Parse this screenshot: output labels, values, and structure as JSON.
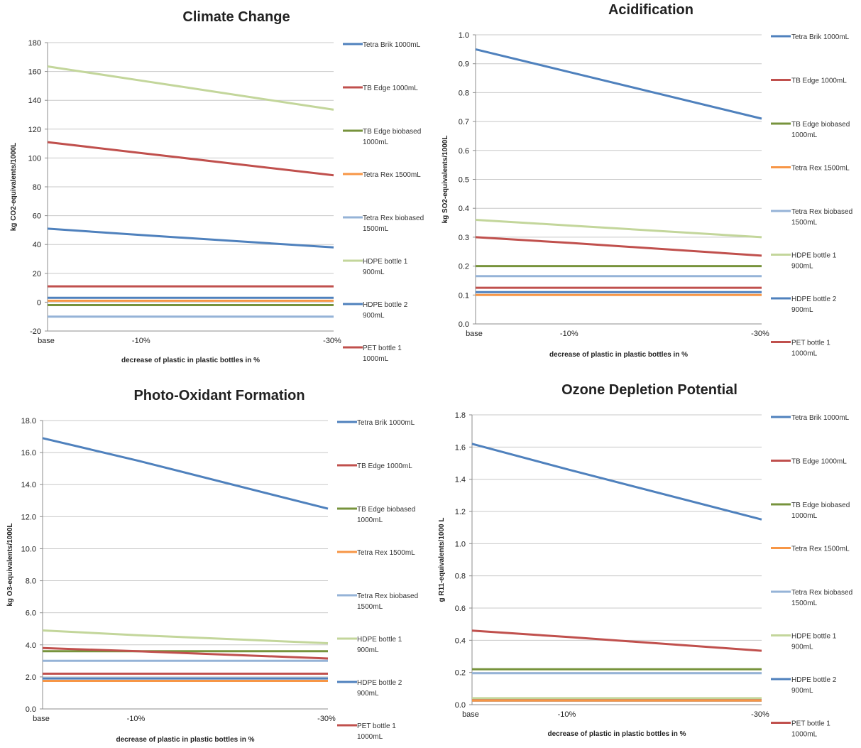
{
  "chart_data": [
    {
      "type": "line",
      "title": "Climate Change",
      "xlabel": "decrease of  plastic in plastic bottles in %",
      "ylabel": "kg CO2-equivalents/1000L",
      "x": [
        "base",
        "-10%",
        "-30%"
      ],
      "ylim": [
        -20,
        180
      ],
      "ystep": 20,
      "ydecimals": 0,
      "grid": true,
      "legend_position": "right",
      "series": [
        {
          "name": "Tetra Brik 1000mL",
          "color": "#4f81bd",
          "values": [
            3,
            3,
            3
          ]
        },
        {
          "name": "TB Edge 1000mL",
          "color": "#c0504d",
          "values": [
            11,
            11,
            11
          ]
        },
        {
          "name": "TB Edge biobased\n1000mL",
          "color": "#77933c",
          "values": [
            -2,
            -2,
            -2
          ]
        },
        {
          "name": "Tetra Rex 1500mL",
          "color": "#f79646",
          "values": [
            1,
            1,
            1
          ]
        },
        {
          "name": "Tetra Rex biobased\n1500mL",
          "color": "#95b3d7",
          "values": [
            -10,
            -10,
            -10
          ]
        },
        {
          "name": "HDPE bottle 1\n900mL",
          "color": "#c3d69b",
          "values": [
            163.5,
            153.5,
            133.5
          ]
        },
        {
          "name": "HDPE bottle 2\n900mL",
          "color": "#4f81bd",
          "values": [
            51,
            46.5,
            38
          ]
        },
        {
          "name": "PET bottle 1\n1000mL",
          "color": "#c0504d",
          "values": [
            111,
            103.3,
            88
          ]
        }
      ]
    },
    {
      "type": "line",
      "title": "Acidification",
      "xlabel": "decrease of  plastic in plastic bottles in %",
      "ylabel": "kg SO2-equivalents/1000L",
      "x": [
        "base",
        "-10%",
        "-30%"
      ],
      "ylim": [
        0,
        1
      ],
      "ystep": 0.1,
      "ydecimals": 1,
      "grid": true,
      "legend_position": "right",
      "series": [
        {
          "name": "Tetra Brik 1000mL",
          "color": "#4f81bd",
          "values": [
            0.11,
            0.11,
            0.11
          ]
        },
        {
          "name": "TB Edge 1000mL",
          "color": "#c0504d",
          "values": [
            0.125,
            0.125,
            0.125
          ]
        },
        {
          "name": "TB Edge biobased\n1000mL",
          "color": "#77933c",
          "values": [
            0.2,
            0.2,
            0.2
          ]
        },
        {
          "name": "Tetra Rex 1500mL",
          "color": "#f79646",
          "values": [
            0.1,
            0.1,
            0.1
          ]
        },
        {
          "name": "Tetra Rex biobased\n1500mL",
          "color": "#95b3d7",
          "values": [
            0.165,
            0.165,
            0.165
          ]
        },
        {
          "name": "HDPE bottle 1\n900mL",
          "color": "#c3d69b",
          "values": [
            0.36,
            0.34,
            0.3
          ]
        },
        {
          "name": "HDPE bottle 2\n900mL",
          "color": "#4f81bd",
          "values": [
            0.95,
            0.87,
            0.71
          ]
        },
        {
          "name": "PET bottle 1\n1000mL",
          "color": "#c0504d",
          "values": [
            0.3,
            0.28,
            0.236
          ]
        }
      ]
    },
    {
      "type": "line",
      "title": "Photo-Oxidant Formation",
      "xlabel": "decrease of  plastic in plastic bottles in %",
      "ylabel": "kg O3-equivalents/1000L",
      "x": [
        "base",
        "-10%",
        "-30%"
      ],
      "ylim": [
        0,
        18
      ],
      "ystep": 2,
      "ydecimals": 1,
      "grid": true,
      "legend_position": "right",
      "series": [
        {
          "name": "Tetra Brik 1000mL",
          "color": "#4f81bd",
          "values": [
            1.9,
            1.9,
            1.9
          ]
        },
        {
          "name": "TB Edge 1000mL",
          "color": "#c0504d",
          "values": [
            2.2,
            2.2,
            2.2
          ]
        },
        {
          "name": "TB Edge biobased\n1000mL",
          "color": "#77933c",
          "values": [
            3.6,
            3.6,
            3.6
          ]
        },
        {
          "name": "Tetra Rex 1500mL",
          "color": "#f79646",
          "values": [
            1.75,
            1.75,
            1.75
          ]
        },
        {
          "name": "Tetra Rex biobased\n1500mL",
          "color": "#95b3d7",
          "values": [
            3.0,
            3.0,
            3.0
          ]
        },
        {
          "name": "HDPE bottle 1\n900mL",
          "color": "#c3d69b",
          "values": [
            4.9,
            4.6,
            4.1
          ]
        },
        {
          "name": "HDPE bottle 2\n900mL",
          "color": "#4f81bd",
          "values": [
            16.9,
            15.5,
            12.5
          ]
        },
        {
          "name": "PET bottle 1\n1000mL",
          "color": "#c0504d",
          "values": [
            3.8,
            3.6,
            3.15
          ]
        }
      ]
    },
    {
      "type": "line",
      "title": "Ozone Depletion Potential",
      "xlabel": "decrease of  plastic in plastic bottles in %",
      "ylabel": "g R11-equivalents/1000 L",
      "x": [
        "base",
        "-10%",
        "-30%"
      ],
      "ylim": [
        0,
        1.8
      ],
      "ystep": 0.2,
      "ydecimals": 1,
      "grid": true,
      "legend_position": "right",
      "series": [
        {
          "name": "Tetra Brik 1000mL",
          "color": "#4f81bd",
          "values": [
            0.025,
            0.025,
            0.025
          ]
        },
        {
          "name": "TB Edge 1000mL",
          "color": "#c0504d",
          "values": [
            0.03,
            0.03,
            0.03
          ]
        },
        {
          "name": "TB Edge biobased\n1000mL",
          "color": "#77933c",
          "values": [
            0.22,
            0.22,
            0.22
          ]
        },
        {
          "name": "Tetra Rex 1500mL",
          "color": "#f79646",
          "values": [
            0.025,
            0.025,
            0.025
          ]
        },
        {
          "name": "Tetra Rex biobased\n1500mL",
          "color": "#95b3d7",
          "values": [
            0.195,
            0.195,
            0.195
          ]
        },
        {
          "name": "HDPE bottle 1\n900mL",
          "color": "#c3d69b",
          "values": [
            0.04,
            0.04,
            0.04
          ]
        },
        {
          "name": "HDPE bottle 2\n900mL",
          "color": "#4f81bd",
          "values": [
            1.62,
            1.46,
            1.15
          ]
        },
        {
          "name": "PET bottle 1\n1000mL",
          "color": "#c0504d",
          "values": [
            0.46,
            0.42,
            0.335
          ]
        }
      ]
    }
  ]
}
